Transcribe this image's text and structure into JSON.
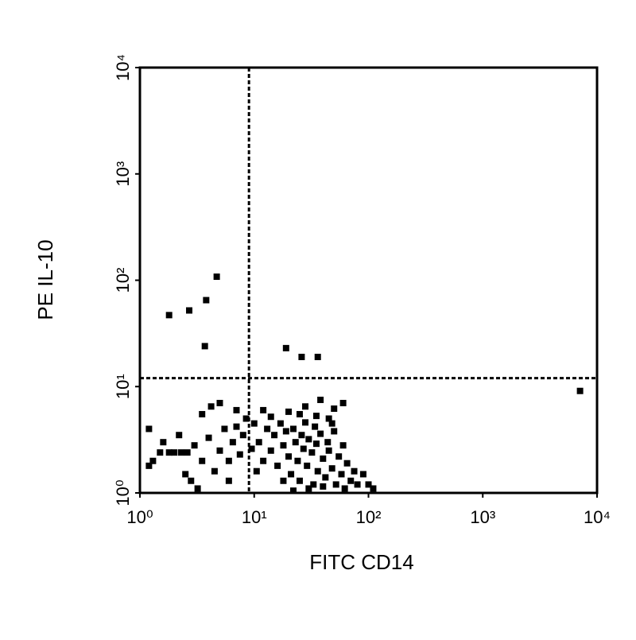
{
  "chart_data": {
    "type": "scatter",
    "x_label": "FITC CD14",
    "y_label": "PE IL-10",
    "log_x": true,
    "log_y": true,
    "color": "#000000",
    "xlim": [
      1,
      10000
    ],
    "ylim": [
      1,
      10000
    ],
    "xticks": [
      {
        "value": 1,
        "label": "10⁰"
      },
      {
        "value": 10,
        "label": "10¹"
      },
      {
        "value": 100,
        "label": "10²"
      },
      {
        "value": 1000,
        "label": "10³"
      },
      {
        "value": 10000,
        "label": "10⁴"
      }
    ],
    "yticks": [
      {
        "value": 1,
        "label": "10⁰"
      },
      {
        "value": 10,
        "label": "10¹"
      },
      {
        "value": 100,
        "label": "10²"
      },
      {
        "value": 1000,
        "label": "10³"
      },
      {
        "value": 10000,
        "label": "10⁴"
      }
    ],
    "quadrant_x": 9,
    "quadrant_y": 12,
    "x": [
      11,
      12,
      13,
      14,
      15,
      16,
      17,
      18,
      19,
      20,
      21,
      22,
      23,
      24,
      25,
      26,
      27,
      28,
      29,
      30,
      32,
      33,
      34,
      35,
      36,
      38,
      40,
      42,
      44,
      45,
      48,
      50,
      52,
      55,
      58,
      60,
      62,
      65,
      70,
      75,
      80,
      14,
      25,
      35,
      45,
      10,
      9.5,
      10.5,
      30,
      40,
      20,
      28,
      50,
      38,
      60,
      22,
      18,
      48,
      12,
      100,
      90,
      110,
      1.5,
      1.8,
      2,
      2.3,
      2.6,
      1.3,
      1.2,
      1.6,
      2.2,
      2.5,
      3,
      3.5,
      4,
      4.5,
      5,
      5.5,
      6,
      6.5,
      7,
      7.5,
      8,
      8.5,
      7,
      5,
      3.5,
      1.2,
      2.8,
      3.2,
      4.2,
      6,
      4.7,
      3.8,
      2.7,
      1.8,
      3.7,
      19,
      26,
      36,
      7100
    ],
    "y": [
      3,
      2,
      4,
      2.5,
      3.5,
      1.8,
      4.5,
      2.8,
      3.8,
      2.2,
      1.5,
      4,
      3,
      2,
      1.3,
      3.5,
      2.6,
      4.6,
      1.8,
      3.2,
      2.4,
      1.2,
      4.2,
      2.9,
      1.6,
      3.6,
      2.1,
      1.4,
      3,
      2.5,
      1.7,
      3.8,
      1.2,
      2.2,
      1.5,
      2.8,
      1.1,
      1.9,
      1.3,
      1.6,
      1.2,
      5.2,
      5.5,
      5.3,
      5,
      4.5,
      2.6,
      1.6,
      1.1,
      1.15,
      5.8,
      6.5,
      6.2,
      7.5,
      7,
      1.05,
      1.3,
      4.5,
      6,
      1.2,
      1.5,
      1.1,
      2.4,
      2.4,
      2.4,
      2.4,
      2.4,
      2,
      1.8,
      3,
      3.5,
      1.5,
      2.8,
      2,
      3.3,
      1.6,
      2.5,
      4,
      2,
      3,
      4.2,
      2.3,
      3.5,
      5,
      6,
      7,
      5.5,
      4,
      1.3,
      1.1,
      6.5,
      1.3,
      108,
      65,
      52,
      47,
      24,
      23,
      19,
      19,
      9.1
    ]
  }
}
